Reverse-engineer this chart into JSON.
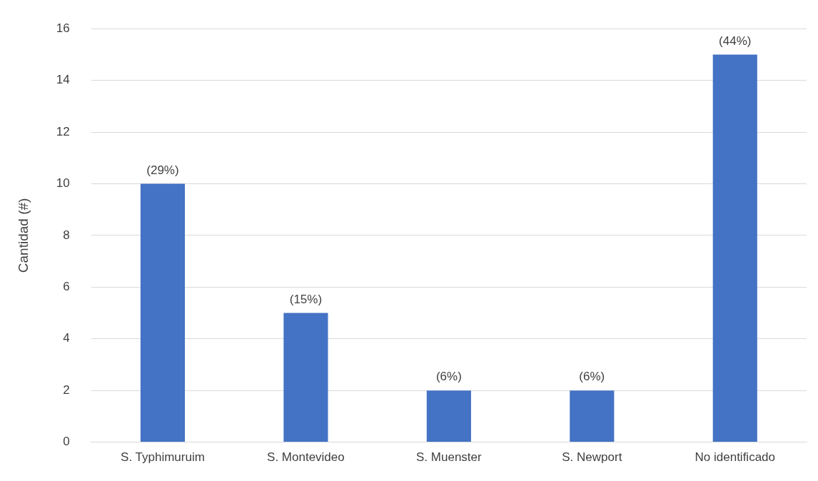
{
  "chart_data": {
    "type": "bar",
    "ylabel": "Cantidad (#)",
    "categories": [
      "S. Typhimuruim",
      "S. Montevideo",
      "S. Muenster",
      "S. Newport",
      "No identificado"
    ],
    "values": [
      10,
      5,
      2,
      2,
      15
    ],
    "annotations": [
      {
        "text": "(29%)",
        "x": "S. Typhimuruim",
        "y": 10
      },
      {
        "text": "(15%)",
        "x": "S. Montevideo",
        "y": 5
      },
      {
        "text": "(6%)",
        "x": "S. Muenster",
        "y": 2
      },
      {
        "text": "(6%)",
        "x": "S. Newport",
        "y": 2
      },
      {
        "text": "(44%)",
        "x": "No identificado",
        "y": 15
      }
    ],
    "color": "#4472c4",
    "ylim": [
      0,
      16
    ],
    "yticks": [
      0,
      2,
      4,
      6,
      8,
      10,
      12,
      14,
      16
    ],
    "grid": "y",
    "legend": false
  }
}
